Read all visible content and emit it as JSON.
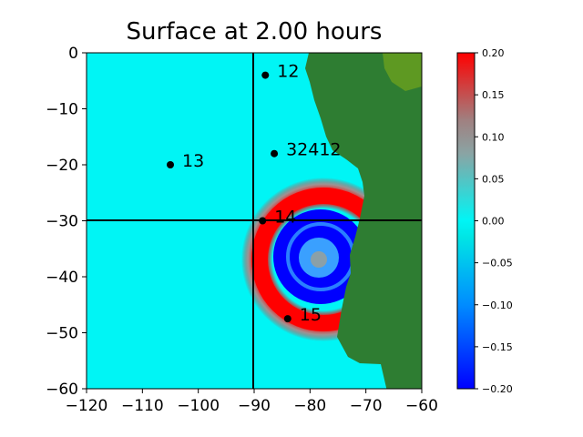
{
  "chart_data": {
    "type": "heatmap",
    "title": "Surface at 2.00 hours",
    "xlabel": "",
    "ylabel": "",
    "xlim": [
      -120,
      -60
    ],
    "ylim": [
      -60,
      0
    ],
    "x_ticks": [
      -120,
      -110,
      -100,
      -90,
      -80,
      -70,
      -60
    ],
    "y_ticks": [
      0,
      -10,
      -20,
      -30,
      -40,
      -50,
      -60
    ],
    "x_tick_labels": [
      "−120",
      "−110",
      "−100",
      "−90",
      "−80",
      "−70",
      "−60"
    ],
    "y_tick_labels": [
      "0",
      "−10",
      "−20",
      "−30",
      "−40",
      "−50",
      "−60"
    ],
    "crosshair": {
      "x": -90,
      "y": -30
    },
    "land_color": "#2e7d32",
    "ocean_color": "#00f5f5",
    "wave_crest_color": "#ff0000",
    "wave_trough_color": "#0000ff",
    "colorbar": {
      "min": -0.2,
      "max": 0.2,
      "ticks": [
        0.2,
        0.15,
        0.1,
        0.05,
        0.0,
        -0.05,
        -0.1,
        -0.15,
        -0.2
      ],
      "tick_labels": [
        "0.20",
        "0.15",
        "0.10",
        "0.05",
        "0.00",
        "−0.05",
        "−0.10",
        "−0.15",
        "−0.20"
      ],
      "colors": [
        "#0000ff",
        "#00e5e5",
        "#00f5f5",
        "#9a9a9a",
        "#ff0000"
      ]
    },
    "gauges": [
      {
        "label": "12",
        "x": -88,
        "y": -4
      },
      {
        "label": "32412",
        "x": -86.4,
        "y": -18
      },
      {
        "label": "13",
        "x": -105,
        "y": -20
      },
      {
        "label": "14",
        "x": -88.5,
        "y": -30
      },
      {
        "label": "15",
        "x": -84,
        "y": -47.5
      }
    ]
  }
}
